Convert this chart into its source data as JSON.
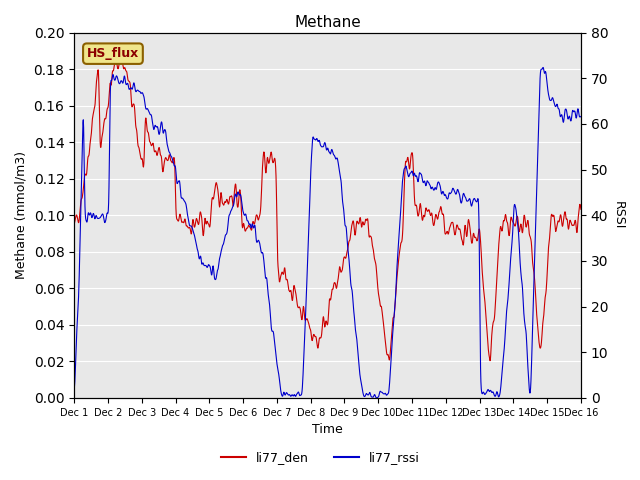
{
  "title": "Methane",
  "ylabel_left": "Methane (mmol/m3)",
  "ylabel_right": "RSSI",
  "xlabel": "Time",
  "ylim_left": [
    0.0,
    0.2
  ],
  "ylim_right": [
    0,
    80
  ],
  "legend_label": "HS_flux",
  "legend_box_color": "#f0e68c",
  "legend_box_edge": "#8b6000",
  "background_color": "#e8e8e8",
  "line1_color": "#cc0000",
  "line2_color": "#0000cc",
  "line1_label": "li77_den",
  "line2_label": "li77_rssi",
  "xtick_labels": [
    "Dec 1",
    "Dec 2",
    "Dec 3",
    "Dec 4",
    "Dec 5",
    "Dec 6",
    "Dec 7",
    "Dec 8",
    "Dec 9",
    "Dec 10",
    "Dec 11",
    "Dec 12",
    "Dec 13",
    "Dec 14",
    "Dec 15",
    "Dec 16"
  ],
  "yticks_left": [
    0.0,
    0.02,
    0.04,
    0.06,
    0.08,
    0.1,
    0.12,
    0.14,
    0.16,
    0.18,
    0.2
  ],
  "yticks_right": [
    0,
    10,
    20,
    30,
    40,
    50,
    60,
    70,
    80
  ],
  "num_points": 1500
}
